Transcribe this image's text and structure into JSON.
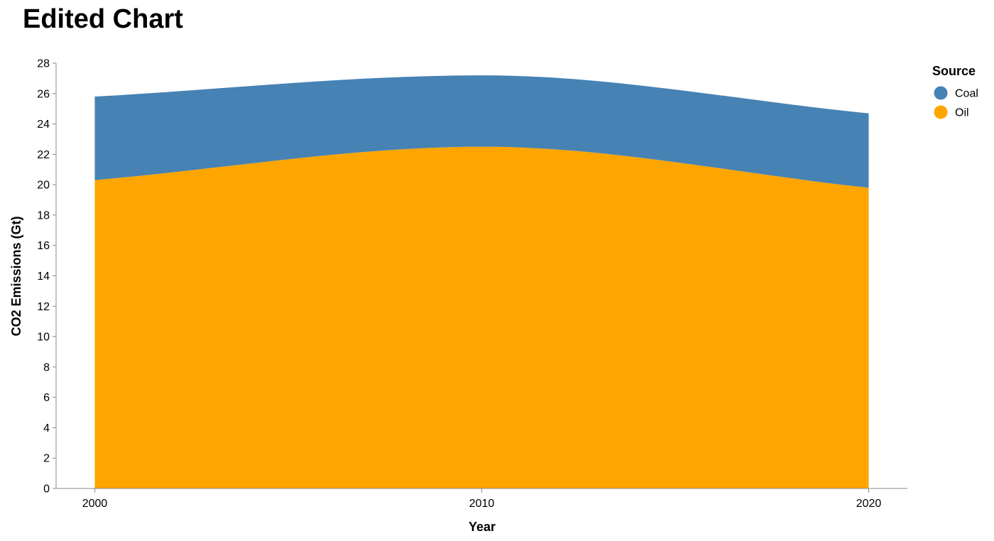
{
  "chart_data": {
    "type": "area",
    "stacked": true,
    "title": "Edited Chart",
    "xlabel": "Year",
    "ylabel": "CO2 Emissions (Gt)",
    "x": [
      2000,
      2010,
      2020
    ],
    "x_ticks": [
      2000,
      2010,
      2020
    ],
    "xlim": [
      1999,
      2021
    ],
    "ylim": [
      0,
      28
    ],
    "y_ticks": [
      0,
      2,
      4,
      6,
      8,
      10,
      12,
      14,
      16,
      18,
      20,
      22,
      24,
      26,
      28
    ],
    "grid": false,
    "legend": {
      "title": "Source",
      "position": "top-right"
    },
    "series": [
      {
        "name": "Oil",
        "color": "#ffa500",
        "values": [
          20.3,
          22.5,
          19.8
        ]
      },
      {
        "name": "Coal",
        "color": "#4682b4",
        "values": [
          5.5,
          4.7,
          4.9
        ]
      }
    ],
    "legend_order": [
      "Coal",
      "Oil"
    ]
  }
}
